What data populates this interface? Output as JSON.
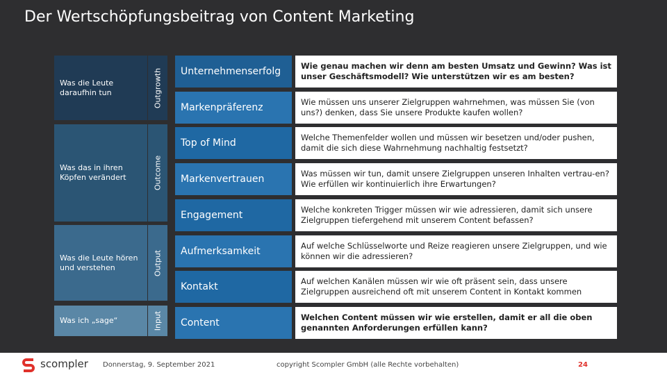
{
  "title": "Der Wertschöpfungsbeitrag von Content Marketing",
  "stages": [
    {
      "label": "Was die Leute daraufhin tun",
      "level": "Outgrowth"
    },
    {
      "label": "Was das in ihren Köpfen verändert",
      "level": "Outcome"
    },
    {
      "label": "Was die Leute hören und verstehen",
      "level": "Output"
    },
    {
      "label": "Was ich „sage“",
      "level": "Input"
    }
  ],
  "rows": [
    {
      "name": "Unternehmenserfolg",
      "question": "Wie genau machen wir denn am besten Umsatz und Gewinn? Was ist unser Geschäftsmodell? Wie unterstützen wir es am besten?"
    },
    {
      "name": "Markenpräferenz",
      "question": "Wie müssen uns unserer Zielgruppen wahrnehmen, was müssen Sie (von uns?) denken, dass Sie unsere Produkte kaufen wollen?"
    },
    {
      "name": "Top of Mind",
      "question": "Welche Themenfelder wollen und müssen wir besetzen und/oder pushen, damit die sich diese Wahrnehmung nachhaltig festsetzt?"
    },
    {
      "name": "Markenvertrauen",
      "question": "Was müssen wir tun, damit unsere Zielgruppen unseren Inhalten vertrau-en? Wie erfüllen wir kontinuierlich ihre Erwartungen?"
    },
    {
      "name": "Engagement",
      "question": "Welche konkreten Trigger müssen wir wie adressieren, damit sich unsere Zielgruppen tiefergehend mit unserem Content befassen?"
    },
    {
      "name": "Aufmerksamkeit",
      "question": "Auf welche Schlüsselworte und Reize reagieren unsere Zielgruppen, und wie können wir die adressieren?"
    },
    {
      "name": "Kontakt",
      "question": "Auf welchen Kanälen müssen wir wie oft präsent sein, dass unsere Zielgruppen ausreichend oft mit unserem Content in Kontakt kommen"
    },
    {
      "name": "Content",
      "question": "Welchen Content müssen wir wie erstellen, damit er all die oben genannten Anforderungen erfüllen kann?"
    }
  ],
  "footer": {
    "logo": "scompler",
    "date": "Donnerstag, 9. September 2021",
    "copyright": "copyright Scompler GmbH (alle Rechte vorbehalten)",
    "page": "24"
  }
}
